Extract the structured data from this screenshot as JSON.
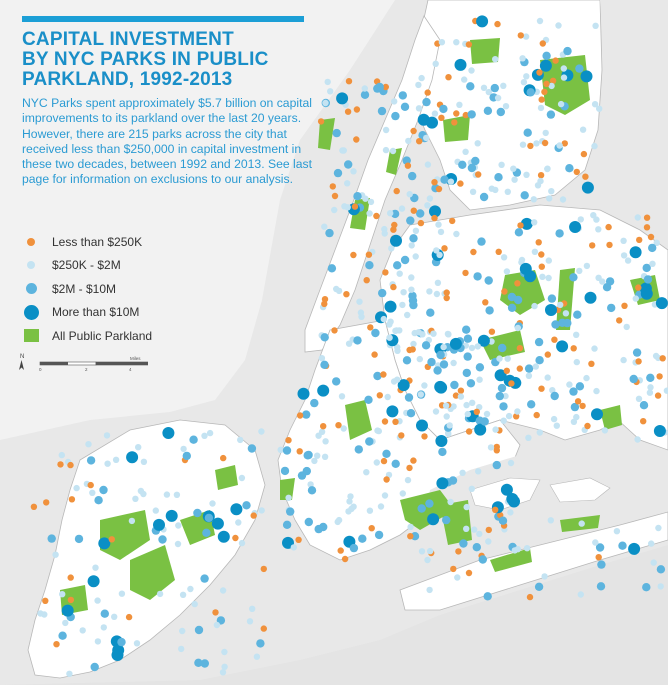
{
  "title_lines": [
    "CAPITAL INVESTMENT",
    "BY NYC PARKS IN PUBLIC",
    "PARKLAND, 1992-2013"
  ],
  "description": "NYC Parks spent approximately $5.7 billion on capital improvements to its parkland over the last 20 years. However, there are 215 parks across the city that received less than $250,000 in capital investment in these two decades, between 1992 and 2013. See last page for information on exclusions to our analysis.",
  "legend": [
    {
      "label": "Less than $250K",
      "symbol": "dot-small",
      "color": "#f0913c"
    },
    {
      "label": "$250K - $2M",
      "symbol": "dot-small",
      "color": "#c4e3f2"
    },
    {
      "label": "$2M - $10M",
      "symbol": "dot-medium",
      "color": "#5db4de"
    },
    {
      "label": "More than $10M",
      "symbol": "dot-large",
      "color": "#0a8fc5"
    },
    {
      "label": "All Public Parkland",
      "symbol": "square",
      "color": "#7ac143"
    }
  ],
  "north_arrow": {
    "letter": "N",
    "icon": "north-arrow-icon"
  },
  "scale_bar": {
    "ticks": [
      "0",
      "2",
      "4"
    ],
    "unit": "Miles"
  },
  "colors": {
    "accent": "#1c9fd6",
    "water": "#e8e8e8",
    "land": "#ffffff",
    "parkland": "#7ac143",
    "boundary": "#b0b0b0"
  }
}
